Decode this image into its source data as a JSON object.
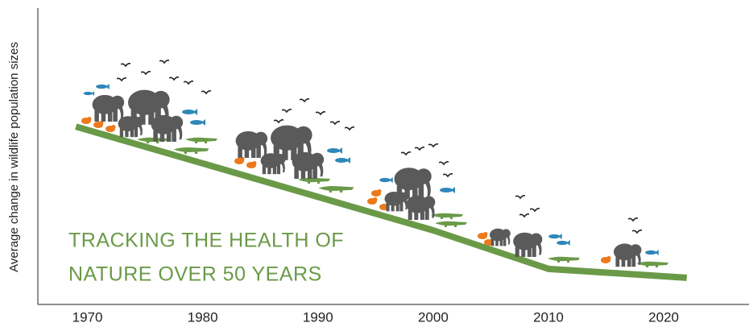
{
  "chart_data": {
    "type": "line",
    "y_label": "Average change in wildlife population sizes",
    "title_lines": [
      "TRACKING THE HEALTH OF",
      "NATURE OVER 50 YEARS"
    ],
    "x": [
      1969,
      2000,
      2010,
      2022
    ],
    "values": [
      60,
      25,
      12,
      9
    ],
    "color": "#6a9a48",
    "xlim": [
      1965.7,
      2027.4
    ],
    "ylim": [
      0,
      100
    ],
    "xticks": [
      1970,
      1980,
      1990,
      2000,
      2010,
      2020
    ],
    "grid": false
  }
}
